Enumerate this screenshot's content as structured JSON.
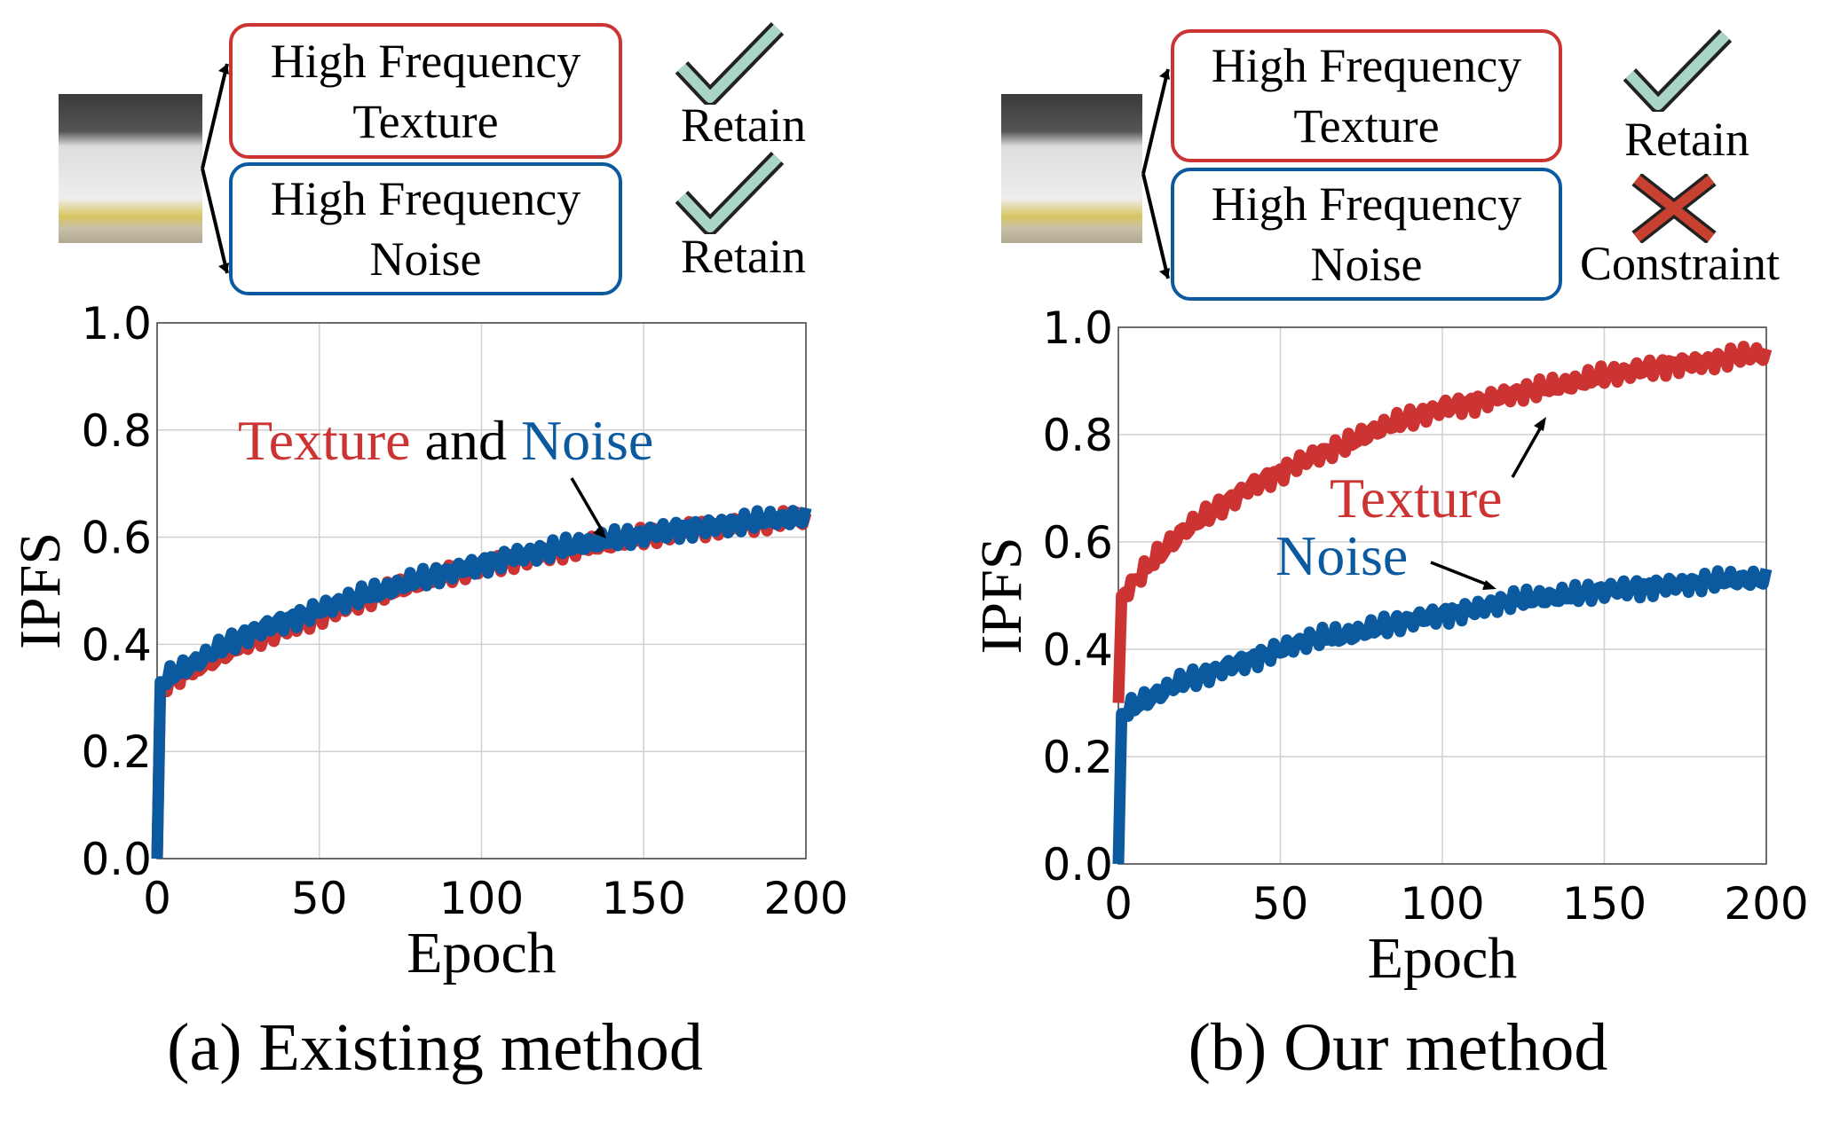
{
  "panels": [
    {
      "caption": "(a) Existing method",
      "box_texture": [
        "High Frequency",
        "Texture"
      ],
      "box_noise": [
        "High Frequency",
        "Noise"
      ],
      "texture_action": "Retain",
      "texture_icon": "check-icon",
      "noise_action": "Retain",
      "noise_icon": "check-icon",
      "annotation": {
        "part1": "Texture",
        "part2": " and ",
        "part3": "Noise"
      }
    },
    {
      "caption": "(b) Our method",
      "box_texture": [
        "High Frequency",
        "Texture"
      ],
      "box_noise": [
        "High Frequency",
        "Noise"
      ],
      "texture_action": "Retain",
      "texture_icon": "check-icon",
      "noise_action": "Constraint",
      "noise_icon": "cross-icon",
      "annotation": {
        "texture": "Texture",
        "noise": "Noise"
      }
    }
  ],
  "colors": {
    "texture": "#cc3333",
    "noise": "#0b5aa0",
    "check": "#a8d5c5",
    "cross": "#c8402f"
  },
  "chart_data": [
    {
      "type": "line",
      "title": "(a) Existing method",
      "xlabel": "Epoch",
      "ylabel": "IPFS",
      "xlim": [
        0,
        200
      ],
      "ylim": [
        0,
        1.0
      ],
      "xticks": [
        "0",
        "50",
        "100",
        "150",
        "200"
      ],
      "yticks": [
        "0.0",
        "0.2",
        "0.4",
        "0.6",
        "0.8",
        "1.0"
      ],
      "grid": true,
      "x": [
        0,
        1,
        10,
        20,
        30,
        40,
        50,
        60,
        70,
        80,
        90,
        100,
        110,
        120,
        130,
        140,
        150,
        160,
        170,
        180,
        190,
        200
      ],
      "series": [
        {
          "name": "Texture",
          "values": [
            0,
            0.32,
            0.35,
            0.38,
            0.41,
            0.43,
            0.455,
            0.475,
            0.495,
            0.515,
            0.53,
            0.545,
            0.56,
            0.57,
            0.58,
            0.59,
            0.6,
            0.61,
            0.62,
            0.625,
            0.63,
            0.635
          ]
        },
        {
          "name": "Noise",
          "values": [
            0,
            0.33,
            0.36,
            0.395,
            0.425,
            0.445,
            0.465,
            0.485,
            0.5,
            0.52,
            0.535,
            0.55,
            0.565,
            0.575,
            0.585,
            0.595,
            0.605,
            0.615,
            0.62,
            0.628,
            0.633,
            0.635
          ]
        }
      ]
    },
    {
      "type": "line",
      "title": "(b) Our method",
      "xlabel": "Epoch",
      "ylabel": "IPFS",
      "xlim": [
        0,
        200
      ],
      "ylim": [
        0,
        1.0
      ],
      "xticks": [
        "0",
        "50",
        "100",
        "150",
        "200"
      ],
      "yticks": [
        "0.0",
        "0.2",
        "0.4",
        "0.6",
        "0.8",
        "1.0"
      ],
      "grid": true,
      "x": [
        0,
        1,
        10,
        20,
        30,
        40,
        50,
        60,
        70,
        80,
        90,
        100,
        110,
        120,
        130,
        140,
        150,
        160,
        170,
        180,
        190,
        200
      ],
      "series": [
        {
          "name": "Texture",
          "values": [
            0.3,
            0.5,
            0.56,
            0.62,
            0.66,
            0.7,
            0.73,
            0.76,
            0.78,
            0.81,
            0.83,
            0.85,
            0.86,
            0.875,
            0.885,
            0.895,
            0.91,
            0.92,
            0.93,
            0.935,
            0.945,
            0.95
          ]
        },
        {
          "name": "Noise",
          "values": [
            0,
            0.28,
            0.31,
            0.34,
            0.36,
            0.38,
            0.4,
            0.42,
            0.425,
            0.44,
            0.455,
            0.465,
            0.475,
            0.49,
            0.495,
            0.5,
            0.51,
            0.515,
            0.52,
            0.525,
            0.53,
            0.53
          ]
        }
      ]
    }
  ]
}
